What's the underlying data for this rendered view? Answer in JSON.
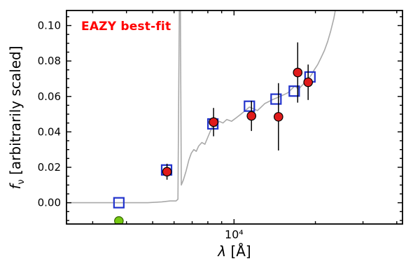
{
  "figure": {
    "background": "#ffffff"
  },
  "chart_data": {
    "type": "line+scatter",
    "title": "EAZY best-fit",
    "title_color": "#ff0000",
    "xlabel_symbol": "λ",
    "xlabel_rest": " [Å]",
    "ylabel_symbol": "f",
    "ylabel_sub": "ν",
    "ylabel_rest": " [arbitrarily scaled]",
    "x_scale": "log",
    "xlim": [
      2400,
      42000
    ],
    "ylim": [
      -0.012,
      0.1085
    ],
    "grid": false,
    "legend": null,
    "y_major_ticks": [
      0.0,
      0.02,
      0.04,
      0.06,
      0.08,
      0.1
    ],
    "y_tick_labels": [
      "0.00",
      "0.02",
      "0.04",
      "0.06",
      "0.08",
      "0.10"
    ],
    "y_minor_step": 0.005,
    "x_major_ticks": [
      10000
    ],
    "x_major_tick_labels": [
      "10⁴"
    ],
    "x_minor_ticks": [
      3000,
      4000,
      5000,
      6000,
      7000,
      8000,
      9000,
      20000,
      30000,
      40000
    ],
    "series": [
      {
        "name": "model-spectrum",
        "type": "line",
        "color": "#a9a9a9",
        "x": [
          2400,
          3000,
          3600,
          4200,
          4800,
          5400,
          5800,
          6100,
          6200,
          6280,
          6330,
          6380,
          6500,
          6650,
          6800,
          6950,
          7100,
          7250,
          7400,
          7600,
          7800,
          8000,
          8200,
          8400,
          8600,
          8800,
          9100,
          9400,
          9800,
          10200,
          10600,
          11000,
          11400,
          11800,
          12200,
          12600,
          13000,
          13400,
          13800,
          14300,
          14800,
          15300,
          15800,
          16300,
          16800,
          17300,
          17800,
          18300,
          18800,
          19300,
          19800,
          20400,
          21000,
          21600,
          22200,
          22800,
          23400,
          23800
        ],
        "y": [
          0,
          0,
          0,
          0,
          0,
          0.0005,
          0.001,
          0.001,
          0.002,
          0.115,
          0.115,
          0.01,
          0.013,
          0.018,
          0.024,
          0.028,
          0.03,
          0.029,
          0.032,
          0.034,
          0.033,
          0.037,
          0.041,
          0.044,
          0.043,
          0.046,
          0.045,
          0.047,
          0.046,
          0.048,
          0.05,
          0.052,
          0.054,
          0.053,
          0.052,
          0.054,
          0.056,
          0.057,
          0.058,
          0.059,
          0.06,
          0.061,
          0.062,
          0.064,
          0.066,
          0.064,
          0.066,
          0.068,
          0.07,
          0.072,
          0.075,
          0.078,
          0.082,
          0.086,
          0.091,
          0.097,
          0.104,
          0.11
        ]
      },
      {
        "name": "model-photometry",
        "type": "scatter",
        "marker": "open-square",
        "color": "#2233cc",
        "x": [
          3750,
          5630,
          8350,
          11400,
          14300,
          16700,
          19100
        ],
        "y": [
          0.0,
          0.0185,
          0.0445,
          0.0545,
          0.0585,
          0.063,
          0.071
        ]
      },
      {
        "name": "observed-photometry",
        "type": "scatter",
        "marker": "circle",
        "color": "#e01b1b",
        "edge_color": "#000000",
        "x": [
          5650,
          8400,
          11600,
          14600,
          17200,
          18800
        ],
        "y": [
          0.0175,
          0.0455,
          0.049,
          0.0485,
          0.0735,
          0.068
        ],
        "yerr": [
          0.0045,
          0.008,
          0.0085,
          0.019,
          0.017,
          0.01
        ]
      },
      {
        "name": "nondetection-point",
        "type": "scatter",
        "marker": "circle",
        "color": "#76c912",
        "edge_color": "#336600",
        "x": [
          3750
        ],
        "y": [
          -0.0103
        ]
      }
    ]
  }
}
